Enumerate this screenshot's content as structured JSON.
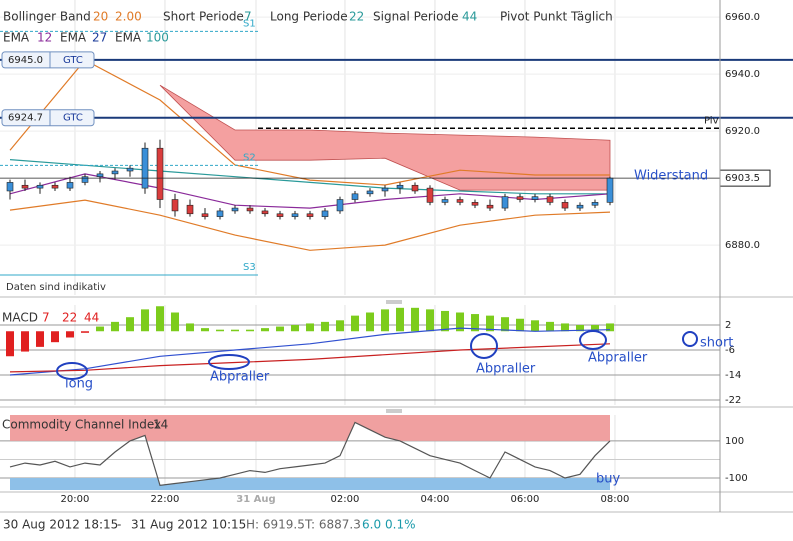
{
  "chart_data": [
    {
      "type": "candlestick",
      "header": [
        "Bollinger Band",
        "20",
        "2.00",
        "Short Periode",
        "7",
        "Long Periode",
        "22",
        "Signal Periode",
        "44",
        "Pivot Punkt Täglich"
      ],
      "ema_legend": [
        "EMA",
        "12",
        "EMA",
        "27",
        "EMA",
        "100"
      ],
      "note": "Daten sind indikativ",
      "annotation": "Widerstand",
      "xlim": [
        -0.667,
        47.333
      ],
      "xticks": [
        {
          "value": 4.33,
          "label": "20:00"
        },
        {
          "value": 10.33,
          "label": "22:00"
        },
        {
          "value": 16.4,
          "label": "31 Aug"
        },
        {
          "value": 22.33,
          "label": "02:00"
        },
        {
          "value": 28.33,
          "label": "04:00"
        },
        {
          "value": 34.33,
          "label": "06:00"
        },
        {
          "value": 40.33,
          "label": "08:00"
        }
      ],
      "ylim": [
        6862.5,
        6966
      ],
      "yticks": [
        {
          "value": 6880,
          "label": "6880.0"
        },
        {
          "value": 6920,
          "label": "6920.0"
        },
        {
          "value": 6940,
          "label": "6940.0"
        },
        {
          "value": 6960,
          "label": "6960.0"
        }
      ],
      "up_color": "#3a8fd8",
      "down_color": "#d93c3c",
      "open": [
        6899,
        6901,
        6900,
        6901,
        6900,
        6902,
        6904,
        6905,
        6906,
        6900,
        6914,
        6896,
        6894,
        6891,
        6890,
        6892,
        6893,
        6892,
        6891,
        6890,
        6891,
        6890,
        6892,
        6896,
        6898,
        6899,
        6900,
        6901,
        6900,
        6895,
        6896,
        6895,
        6894,
        6893,
        6897,
        6896,
        6897,
        6895,
        6893,
        6894,
        6895
      ],
      "high": [
        6903,
        6903,
        6902,
        6902,
        6904,
        6905,
        6906,
        6907,
        6908,
        6916,
        6917,
        6898,
        6896,
        6893,
        6893,
        6894,
        6894,
        6893,
        6892,
        6892,
        6892,
        6893,
        6897,
        6899,
        6900,
        6901,
        6902,
        6902,
        6901,
        6897,
        6897,
        6896,
        6896,
        6898,
        6898,
        6898,
        6898,
        6896,
        6895,
        6896,
        6904
      ],
      "low": [
        6896,
        6899,
        6898,
        6899,
        6899,
        6901,
        6902,
        6903,
        6904,
        6898,
        6893,
        6890,
        6890,
        6889,
        6889,
        6891,
        6891,
        6890,
        6889,
        6889,
        6889,
        6889,
        6891,
        6895,
        6897,
        6897,
        6898,
        6898,
        6894,
        6894,
        6894,
        6893,
        6892,
        6892,
        6895,
        6895,
        6894,
        6892,
        6892,
        6893,
        6894
      ],
      "close": [
        6902,
        6900,
        6901,
        6900,
        6902,
        6904,
        6905,
        6906,
        6907,
        6914,
        6896,
        6892,
        6891,
        6890,
        6892,
        6893,
        6892,
        6891,
        6890,
        6891,
        6890,
        6892,
        6896,
        6898,
        6899,
        6900,
        6901,
        6899,
        6895,
        6896,
        6895,
        6894,
        6893,
        6897,
        6896,
        6897,
        6895,
        6893,
        6894,
        6895,
        6903.5
      ],
      "overlay_x": [
        0,
        5,
        10,
        15,
        20,
        25,
        30,
        35,
        40
      ],
      "overlays": [
        {
          "color": "#e07b28",
          "values": [
            6913.3,
            6944.9,
            6930.9,
            6908.1,
            6902.8,
            6901.1,
            6906.3,
            6904.6,
            6904.6
          ]
        },
        {
          "color": "#e07b28",
          "values": [
            6892.3,
            6895.8,
            6890.5,
            6883.5,
            6878.2,
            6880.0,
            6887.0,
            6890.5,
            6891.6
          ]
        },
        {
          "color": "#2a9a9a",
          "values": [
            6910,
            6908,
            6906,
            6904,
            6902,
            6900,
            6899,
            6898,
            6898
          ]
        },
        {
          "color": "#8a2a9a",
          "values": [
            6898,
            6905,
            6900,
            6894,
            6893,
            6896,
            6898,
            6896,
            6898
          ]
        }
      ],
      "cloud": {
        "color": "#f4a0a0",
        "upper": [
          null,
          null,
          6936.1,
          6920.4,
          6920.4,
          6919.3,
          6918.6,
          6917.9,
          6916.8
        ],
        "lower": [
          null,
          null,
          6936.1,
          6909.8,
          6909.8,
          6910.5,
          6899.3,
          6899.3,
          6899.3
        ]
      },
      "levels": [
        {
          "value": 6945,
          "label": "6945.0",
          "tag": "GTC"
        },
        {
          "value": 6924.7,
          "label": "6924.7",
          "tag": "GTC"
        }
      ],
      "pivots": [
        {
          "name": "S1",
          "value": 6955
        },
        {
          "name": "S2",
          "value": 6908
        },
        {
          "name": "S3",
          "value": 6869.5
        },
        {
          "name": "Piv",
          "value": 6921
        }
      ],
      "last": {
        "value": 6903.5,
        "label": "6903.5"
      }
    },
    {
      "type": "macd",
      "legend": [
        "MACD",
        "7",
        "22",
        "44"
      ],
      "annotations": [
        "long",
        "Abpraller",
        "Abpraller",
        "Abpraller",
        "short"
      ],
      "ylim": [
        -23.6,
        8.4
      ],
      "yticks": [
        2,
        -6,
        -14,
        -22
      ],
      "positive_color": "#7ccc1c",
      "negative_color": "#e02020",
      "values": [
        -8,
        -6.5,
        -5,
        -3.5,
        -2,
        -0.5,
        1.5,
        3,
        4.5,
        7,
        8,
        6,
        2.5,
        1,
        0.5,
        0.5,
        0.5,
        1,
        1.5,
        2,
        2.5,
        3,
        3.5,
        5,
        6,
        7,
        7.5,
        7.5,
        7,
        6.5,
        6,
        5.5,
        5,
        4.5,
        4,
        3.5,
        3,
        2.5,
        2,
        2,
        2.5
      ],
      "line_x": [
        0,
        5,
        10,
        15,
        20,
        25,
        30,
        35,
        40
      ],
      "lines": [
        {
          "color": "#3050d0",
          "values": [
            -14,
            -12,
            -8,
            -6,
            -4,
            -1,
            1,
            0,
            0.5
          ]
        },
        {
          "color": "#c82020",
          "values": [
            -13,
            -12.5,
            -11,
            -10,
            -9,
            -7.5,
            -6,
            -5,
            -4
          ]
        }
      ]
    },
    {
      "type": "cci",
      "legend": [
        "Commodity Channel Index",
        "14"
      ],
      "annotation": "buy",
      "ylim": [
        -165,
        240
      ],
      "yticks": [
        100,
        -100
      ],
      "color": "#555",
      "high_fill": "#f0a0a0",
      "low_fill": "#8ec0e8",
      "values": [
        -40,
        -20,
        -30,
        -10,
        -40,
        -20,
        -30,
        40,
        100,
        130,
        -140,
        -130,
        -120,
        -110,
        -100,
        -80,
        -60,
        -70,
        -50,
        -40,
        -30,
        -20,
        20,
        200,
        160,
        120,
        100,
        60,
        20,
        0,
        -20,
        -60,
        -100,
        40,
        0,
        -40,
        -60,
        -100,
        -80,
        20,
        100
      ]
    }
  ],
  "status": {
    "from": "30 Aug 2012 18:15",
    "sep": "-",
    "to": "31 Aug 2012 10:15",
    "high": "H: 6919.5",
    "low": "T: 6887.3",
    "change": "6.0",
    "pct": "0.1%"
  }
}
